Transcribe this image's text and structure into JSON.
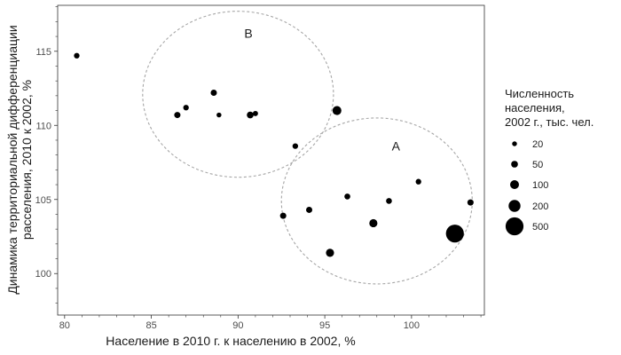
{
  "chart_data": {
    "type": "scatter",
    "title": "",
    "xlabel": "Население в 2010 г. к населению в 2002, %",
    "ylabel_lines": [
      "Динамика территориальной дифференциации",
      "расселения, 2010 к 2002, %"
    ],
    "xlim": [
      79.6,
      104.2
    ],
    "ylim": [
      97.2,
      118.1
    ],
    "x_ticks": [
      80,
      85,
      90,
      95,
      100
    ],
    "y_ticks": [
      100,
      105,
      110,
      115
    ],
    "grid": false,
    "point_color": "#000000",
    "points": [
      {
        "x": 80.7,
        "y": 114.7,
        "size": 30
      },
      {
        "x": 86.5,
        "y": 110.7,
        "size": 40
      },
      {
        "x": 87.0,
        "y": 111.2,
        "size": 30
      },
      {
        "x": 88.6,
        "y": 112.2,
        "size": 40
      },
      {
        "x": 88.9,
        "y": 110.7,
        "size": 20
      },
      {
        "x": 90.7,
        "y": 110.7,
        "size": 50
      },
      {
        "x": 91.0,
        "y": 110.8,
        "size": 25
      },
      {
        "x": 95.7,
        "y": 111.0,
        "size": 100
      },
      {
        "x": 93.3,
        "y": 108.6,
        "size": 30
      },
      {
        "x": 92.6,
        "y": 103.9,
        "size": 40
      },
      {
        "x": 94.1,
        "y": 104.3,
        "size": 40
      },
      {
        "x": 96.3,
        "y": 105.2,
        "size": 35
      },
      {
        "x": 97.8,
        "y": 103.4,
        "size": 80
      },
      {
        "x": 95.3,
        "y": 101.4,
        "size": 80
      },
      {
        "x": 98.7,
        "y": 104.9,
        "size": 35
      },
      {
        "x": 100.4,
        "y": 106.2,
        "size": 30
      },
      {
        "x": 102.5,
        "y": 102.7,
        "size": 500
      },
      {
        "x": 103.4,
        "y": 104.8,
        "size": 40
      }
    ],
    "clusters": [
      {
        "label": "B",
        "cx": 90.0,
        "cy": 112.1,
        "rx": 5.5,
        "ry": 5.6,
        "label_x": 90.6,
        "label_y": 115.9,
        "stroke": "#a6a6a6"
      },
      {
        "label": "A",
        "cx": 98.0,
        "cy": 104.9,
        "rx": 5.5,
        "ry": 5.6,
        "label_x": 99.1,
        "label_y": 108.3,
        "stroke": "#a6a6a6"
      }
    ],
    "legend": {
      "title_lines": [
        "Численность",
        "населения,",
        "2002 г., тыс. чел."
      ],
      "placement": "right",
      "entries": [
        {
          "label": "20",
          "size": 20
        },
        {
          "label": "50",
          "size": 50
        },
        {
          "label": "100",
          "size": 100
        },
        {
          "label": "200",
          "size": 200
        },
        {
          "label": "500",
          "size": 500
        }
      ]
    }
  }
}
